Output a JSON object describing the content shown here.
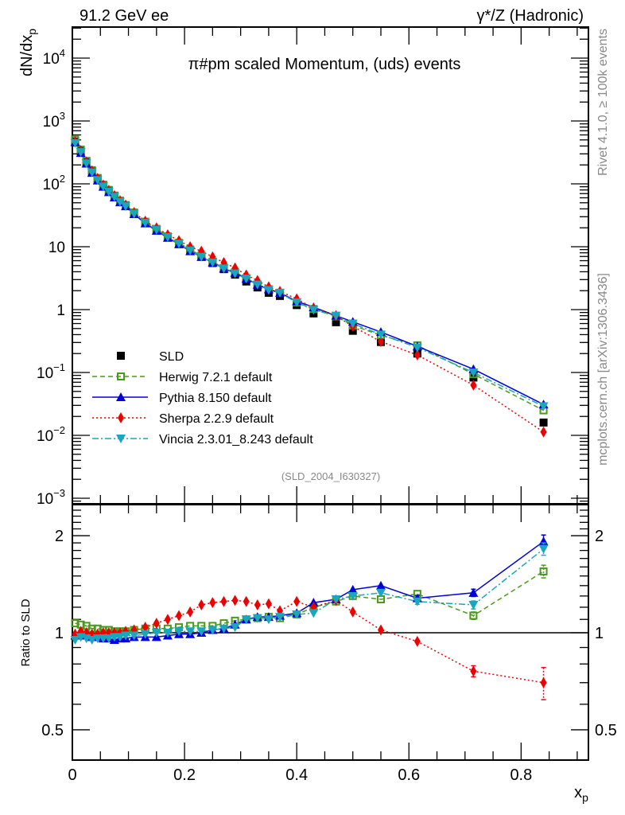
{
  "header": {
    "left_label": "91.2 GeV ee",
    "right_label": "γ*/Z (Hadronic)"
  },
  "side_labels": {
    "rivet": "Rivet 4.1.0, ≥ 100k events",
    "mcplots": "mcplots.cern.ch [arXiv:1306.3436]"
  },
  "chart_data": [
    {
      "type": "scatter",
      "panel": "main",
      "title": "π#pm scaled Momentum, (uds) events",
      "xlabel": "x_p",
      "ylabel": "dN/dx_p",
      "yscale": "log",
      "xlim": [
        0,
        0.92
      ],
      "ylim": [
        0.001,
        30000
      ],
      "yticks": [
        {
          "value": 10000,
          "label": "10^4"
        },
        {
          "value": 1000,
          "label": "10^3"
        },
        {
          "value": 100,
          "label": "10^2"
        },
        {
          "value": 10,
          "label": "10"
        },
        {
          "value": 1,
          "label": "1"
        },
        {
          "value": 0.1,
          "label": "10^-1"
        },
        {
          "value": 0.01,
          "label": "10^-2"
        },
        {
          "value": 0.001,
          "label": "10^-3"
        }
      ],
      "annotation": "(SLD_2004_I630327)",
      "legend_position": "bottom-left",
      "x": [
        0.005,
        0.015,
        0.025,
        0.035,
        0.045,
        0.055,
        0.065,
        0.075,
        0.085,
        0.095,
        0.11,
        0.13,
        0.15,
        0.17,
        0.19,
        0.21,
        0.23,
        0.25,
        0.27,
        0.29,
        0.31,
        0.33,
        0.35,
        0.37,
        0.4,
        0.43,
        0.47,
        0.5,
        0.55,
        0.615,
        0.715,
        0.84
      ],
      "series": [
        {
          "name": "SLD",
          "color": "#000000",
          "marker": "square-filled",
          "line": "none",
          "values": [
            470,
            330,
            220,
            160,
            120,
            95,
            78,
            64,
            53,
            45,
            34,
            24,
            18.5,
            14,
            11,
            8.6,
            6.9,
            5.5,
            4.4,
            3.6,
            2.8,
            2.25,
            1.85,
            1.65,
            1.18,
            0.87,
            0.63,
            0.46,
            0.305,
            0.2,
            0.083,
            0.016
          ]
        },
        {
          "name": "Herwig 7.2.1 default",
          "color": "#4a9a1a",
          "marker": "square-open",
          "line": "dashed",
          "values": [
            505,
            350,
            232,
            165,
            124,
            97,
            80,
            65,
            54,
            46,
            35,
            25,
            19.2,
            14.6,
            11.5,
            9.0,
            7.2,
            5.75,
            4.6,
            3.95,
            3.15,
            2.5,
            2.1,
            1.85,
            1.3,
            1.02,
            0.78,
            0.56,
            0.39,
            0.27,
            0.094,
            0.025
          ]
        },
        {
          "name": "Pythia 8.150 default",
          "color": "#0000dd",
          "marker": "triangle-up",
          "line": "solid",
          "values": [
            460,
            310,
            210,
            150,
            113,
            90,
            74,
            61,
            51,
            44,
            33,
            23.5,
            18.0,
            13.9,
            11.0,
            8.5,
            6.9,
            5.6,
            4.5,
            3.85,
            3.1,
            2.5,
            2.1,
            1.85,
            1.36,
            1.09,
            0.8,
            0.64,
            0.44,
            0.26,
            0.113,
            0.031
          ]
        },
        {
          "name": "Sherpa 2.2.9 default",
          "color": "#ee0000",
          "marker": "diamond",
          "line": "dotted",
          "values": [
            470,
            335,
            222,
            161,
            122,
            96,
            79,
            65,
            54,
            46,
            35,
            25.5,
            20,
            15.5,
            12.5,
            10,
            8.5,
            6.9,
            5.6,
            4.6,
            3.55,
            2.9,
            2.3,
            1.95,
            1.48,
            1.05,
            0.8,
            0.54,
            0.31,
            0.19,
            0.063,
            0.0113
          ]
        },
        {
          "name": "Vincia 2.3.01_8.243 default",
          "color": "#19a6bf",
          "marker": "triangle-down",
          "line": "dashdot",
          "values": [
            445,
            320,
            212,
            152,
            115,
            91,
            75,
            62,
            51.5,
            44,
            33.5,
            24,
            18.6,
            14.2,
            11.2,
            8.7,
            6.9,
            5.6,
            4.5,
            3.75,
            3.1,
            2.5,
            2.05,
            1.85,
            1.3,
            0.99,
            0.8,
            0.6,
            0.4,
            0.25,
            0.1,
            0.029
          ]
        }
      ]
    },
    {
      "type": "line",
      "panel": "ratio",
      "ylabel": "Ratio to SLD",
      "xlabel": "x_p",
      "yscale": "log",
      "xlim": [
        0,
        0.92
      ],
      "ylim": [
        0.4,
        2.5
      ],
      "xticks": [
        {
          "value": 0,
          "label": "0"
        },
        {
          "value": 0.2,
          "label": "0.2"
        },
        {
          "value": 0.4,
          "label": "0.4"
        },
        {
          "value": 0.6,
          "label": "0.6"
        },
        {
          "value": 0.8,
          "label": "0.8"
        }
      ],
      "yticks": [
        {
          "value": 2,
          "label": "2"
        },
        {
          "value": 1,
          "label": "1"
        },
        {
          "value": 0.5,
          "label": "0.5"
        }
      ],
      "reference_line": 1,
      "x": [
        0.005,
        0.015,
        0.025,
        0.035,
        0.045,
        0.055,
        0.065,
        0.075,
        0.085,
        0.095,
        0.11,
        0.13,
        0.15,
        0.17,
        0.19,
        0.21,
        0.23,
        0.25,
        0.27,
        0.29,
        0.31,
        0.33,
        0.35,
        0.37,
        0.4,
        0.43,
        0.47,
        0.5,
        0.55,
        0.615,
        0.715,
        0.84
      ],
      "series": [
        {
          "name": "Herwig 7.2.1 default",
          "color": "#4a9a1a",
          "marker": "square-open",
          "line": "dashed",
          "values": [
            1.07,
            1.06,
            1.05,
            1.03,
            1.03,
            1.02,
            1.02,
            1.01,
            1.01,
            1.01,
            1.02,
            1.03,
            1.03,
            1.03,
            1.04,
            1.05,
            1.05,
            1.05,
            1.07,
            1.09,
            1.1,
            1.11,
            1.12,
            1.11,
            1.14,
            1.2,
            1.25,
            1.3,
            1.27,
            1.32,
            1.13,
            1.55
          ],
          "errors": [
            0.01,
            0.01,
            0.01,
            0.01,
            0.01,
            0.01,
            0.01,
            0.01,
            0.01,
            0.01,
            0.01,
            0.01,
            0.01,
            0.01,
            0.01,
            0.01,
            0.01,
            0.01,
            0.01,
            0.01,
            0.01,
            0.01,
            0.01,
            0.01,
            0.01,
            0.01,
            0.01,
            0.01,
            0.015,
            0.02,
            0.03,
            0.07
          ]
        },
        {
          "name": "Pythia 8.150 default",
          "color": "#0000dd",
          "marker": "triangle-up",
          "line": "solid",
          "values": [
            0.98,
            0.99,
            0.98,
            0.97,
            0.97,
            0.96,
            0.96,
            0.95,
            0.96,
            0.96,
            0.97,
            0.97,
            0.97,
            0.98,
            0.99,
            0.99,
            1.0,
            1.02,
            1.03,
            1.06,
            1.1,
            1.12,
            1.12,
            1.13,
            1.15,
            1.24,
            1.27,
            1.36,
            1.4,
            1.28,
            1.33,
            1.92
          ],
          "errors": [
            0.01,
            0.01,
            0.01,
            0.01,
            0.01,
            0.01,
            0.01,
            0.01,
            0.01,
            0.01,
            0.01,
            0.01,
            0.01,
            0.01,
            0.01,
            0.01,
            0.01,
            0.01,
            0.01,
            0.01,
            0.01,
            0.01,
            0.01,
            0.01,
            0.01,
            0.01,
            0.01,
            0.015,
            0.02,
            0.025,
            0.035,
            0.09
          ]
        },
        {
          "name": "Sherpa 2.2.9 default",
          "color": "#ee0000",
          "marker": "diamond",
          "line": "dotted",
          "values": [
            0.99,
            1.01,
            1.0,
            0.99,
            0.99,
            1.0,
            1.0,
            1.0,
            1.0,
            1.01,
            1.02,
            1.04,
            1.07,
            1.1,
            1.13,
            1.16,
            1.22,
            1.24,
            1.25,
            1.26,
            1.25,
            1.22,
            1.23,
            1.17,
            1.25,
            1.2,
            1.26,
            1.16,
            1.02,
            0.94,
            0.76,
            0.7
          ],
          "errors": [
            0.01,
            0.01,
            0.01,
            0.01,
            0.01,
            0.01,
            0.01,
            0.01,
            0.01,
            0.01,
            0.01,
            0.01,
            0.01,
            0.01,
            0.01,
            0.01,
            0.01,
            0.01,
            0.01,
            0.01,
            0.01,
            0.01,
            0.01,
            0.01,
            0.01,
            0.01,
            0.01,
            0.015,
            0.015,
            0.02,
            0.03,
            0.08
          ]
        },
        {
          "name": "Vincia 2.3.01_8.243 default",
          "color": "#19a6bf",
          "marker": "triangle-down",
          "line": "dashdot",
          "values": [
            0.95,
            0.97,
            0.96,
            0.95,
            0.96,
            0.96,
            0.96,
            0.97,
            0.97,
            0.98,
            0.98,
            0.99,
            1.0,
            1.0,
            1.01,
            1.01,
            1.01,
            1.02,
            1.03,
            1.04,
            1.1,
            1.11,
            1.1,
            1.12,
            1.14,
            1.15,
            1.27,
            1.3,
            1.33,
            1.25,
            1.22,
            1.82
          ],
          "errors": [
            0.01,
            0.01,
            0.01,
            0.01,
            0.01,
            0.01,
            0.01,
            0.01,
            0.01,
            0.01,
            0.01,
            0.01,
            0.01,
            0.01,
            0.01,
            0.01,
            0.01,
            0.01,
            0.01,
            0.01,
            0.01,
            0.01,
            0.01,
            0.01,
            0.01,
            0.01,
            0.01,
            0.015,
            0.02,
            0.025,
            0.035,
            0.08
          ]
        }
      ]
    }
  ]
}
